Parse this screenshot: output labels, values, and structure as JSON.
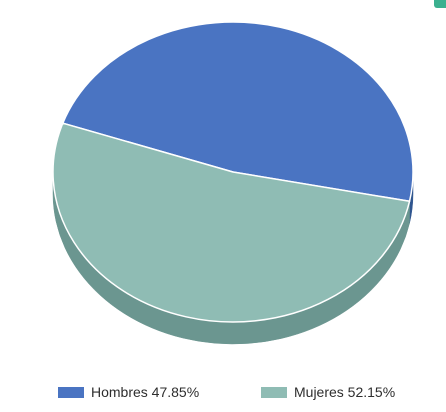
{
  "colors": {
    "accent": "#3bb08f",
    "background": "#ffffff"
  },
  "chart_data": {
    "type": "pie",
    "style": "3d",
    "title": "",
    "legend_position": "bottom",
    "slices": [
      {
        "name": "Hombres",
        "value": 47.85,
        "legend_label": "Hombres 47.85%",
        "color": "#4a74c2",
        "side_color": "#2f558f"
      },
      {
        "name": "Mujeres",
        "value": 52.15,
        "legend_label": "Mujeres 52.15%",
        "color": "#8fbcb4",
        "side_color": "#6b9690"
      }
    ]
  }
}
